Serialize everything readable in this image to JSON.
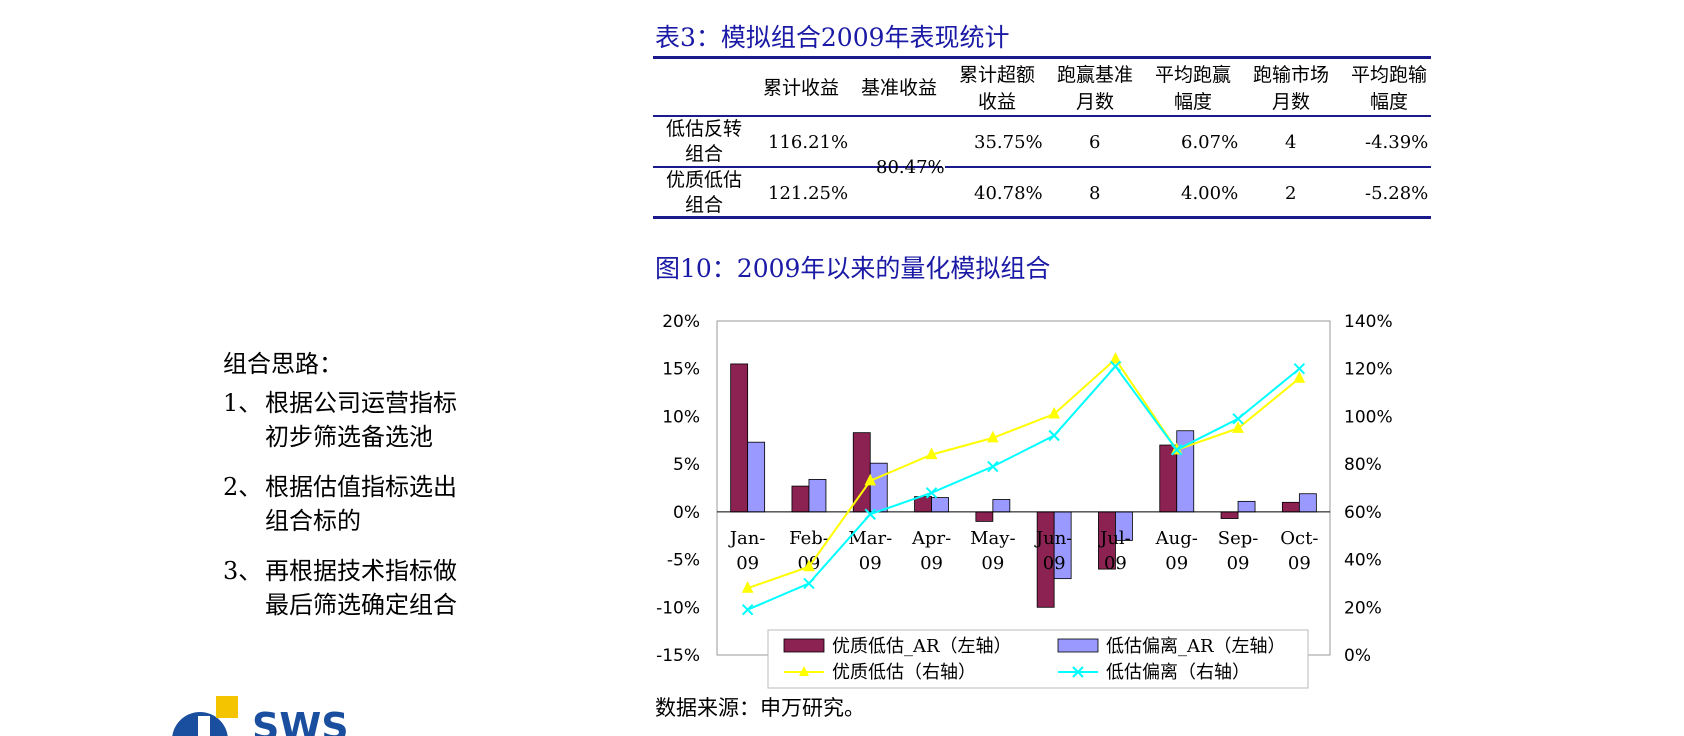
{
  "left": {
    "heading": "组合思路：",
    "items": [
      {
        "num": "1、",
        "lines": [
          "根据公司运营指标",
          "初步筛选备选池"
        ]
      },
      {
        "num": "2、",
        "lines": [
          "根据估值指标选出",
          "组合标的"
        ]
      },
      {
        "num": "3、",
        "lines": [
          "再根据技术指标做",
          "最后筛选确定组合"
        ]
      }
    ]
  },
  "table": {
    "title": "表3：模拟组合2009年表现统计",
    "headers": [
      [
        "累计收益"
      ],
      [
        "基准收益"
      ],
      [
        "累计超额",
        "收益"
      ],
      [
        "跑赢基准",
        "月数"
      ],
      [
        "平均跑赢",
        "幅度"
      ],
      [
        "跑输市场",
        "月数"
      ],
      [
        "平均跑输",
        "幅度"
      ]
    ],
    "rows": [
      {
        "label": [
          "低估反转",
          "组合"
        ],
        "cum": "116.21%",
        "excess": "35.75%",
        "win_months": "6",
        "avg_win": "6.07%",
        "lose_months": "4",
        "avg_lose": "-4.39%"
      },
      {
        "label": [
          "优质低估",
          "组合"
        ],
        "cum": "121.25%",
        "excess": "40.78%",
        "win_months": "8",
        "avg_win": "4.00%",
        "lose_months": "2",
        "avg_lose": "-5.28%"
      }
    ],
    "benchmark": "80.47%"
  },
  "figure_title": "图10：2009年以来的量化模拟组合",
  "source": "数据来源：申万研究。",
  "logo_text": "SWS",
  "chart_data": {
    "type": "bar",
    "categories": [
      "Jan-09",
      "Feb-09",
      "Mar-09",
      "Apr-09",
      "May-09",
      "Jun-09",
      "Jul-09",
      "Aug-09",
      "Sep-09",
      "Oct-09"
    ],
    "y_left": {
      "min": -15,
      "max": 20,
      "step": 5,
      "ticks": [
        "20%",
        "15%",
        "10%",
        "5%",
        "0%",
        "-5%",
        "-10%",
        "-15%"
      ]
    },
    "y_right": {
      "min": 0,
      "max": 140,
      "step": 20,
      "ticks": [
        "140%",
        "120%",
        "100%",
        "80%",
        "60%",
        "40%",
        "20%",
        "0%"
      ]
    },
    "bar_series": [
      {
        "name": "优质低估_AR（左轴）",
        "color": "#8b2252",
        "values": [
          15.5,
          2.7,
          8.3,
          1.6,
          -1.0,
          -10.0,
          -6.0,
          7.0,
          -0.7,
          1.0
        ]
      },
      {
        "name": "低估偏离_AR（左轴）",
        "color": "#9999ff",
        "values": [
          7.3,
          3.4,
          5.1,
          1.5,
          1.3,
          -7.0,
          -3.0,
          8.5,
          1.1,
          1.9
        ]
      }
    ],
    "line_series": [
      {
        "name": "优质低估（右轴）",
        "color": "#ffff00",
        "marker": "triangle",
        "values": [
          28,
          37,
          73,
          84,
          91,
          101,
          124,
          86,
          95,
          116
        ]
      },
      {
        "name": "低估偏离（右轴）",
        "color": "#00ffff",
        "marker": "x",
        "values": [
          19,
          30,
          59,
          68,
          79,
          92,
          121,
          86,
          99,
          120
        ]
      }
    ],
    "legend_position": "bottom"
  }
}
